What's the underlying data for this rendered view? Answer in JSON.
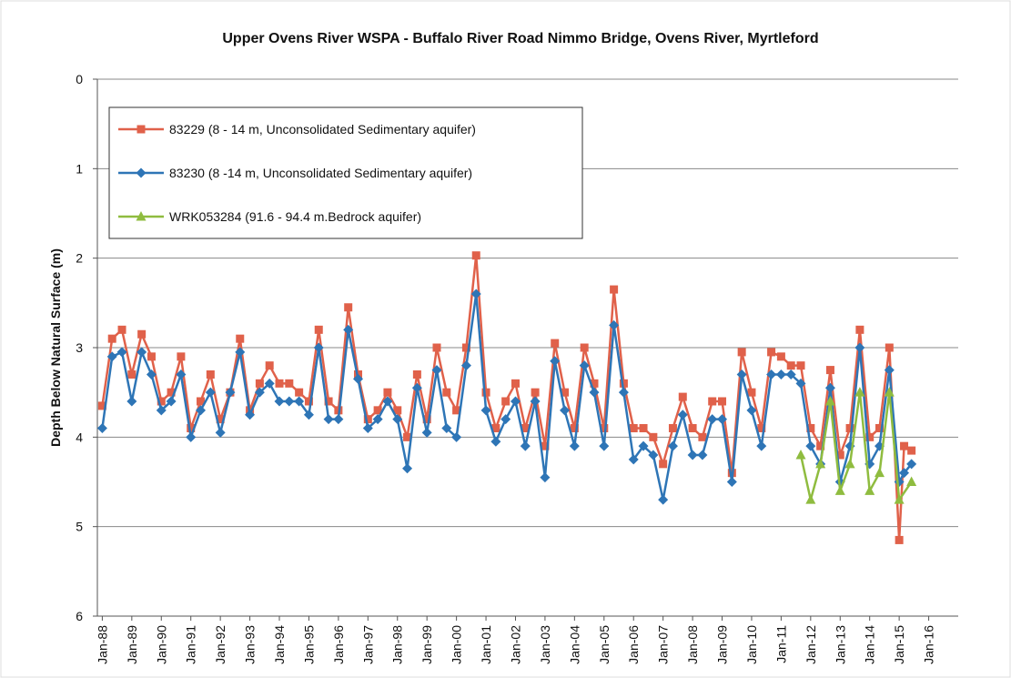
{
  "chart_data": {
    "type": "line",
    "title": "Upper Ovens River WSPA - Buffalo River Road  Nimmo Bridge, Ovens River, Myrtleford",
    "y_label": "Depth Below Natural Surface (m)",
    "ylim": [
      0,
      6
    ],
    "yticks": [
      0,
      1,
      2,
      3,
      4,
      5,
      6
    ],
    "y_inverted": true,
    "grid": true,
    "legend": "top-left",
    "xlim": [
      "1987-11",
      "2017-01"
    ],
    "xticks": [
      {
        "value": "1988-01",
        "label": "Jan-88"
      },
      {
        "value": "1989-01",
        "label": "Jan-89"
      },
      {
        "value": "1990-01",
        "label": "Jan-90"
      },
      {
        "value": "1991-01",
        "label": "Jan-91"
      },
      {
        "value": "1992-01",
        "label": "Jan-92"
      },
      {
        "value": "1993-01",
        "label": "Jan-93"
      },
      {
        "value": "1994-01",
        "label": "Jan-94"
      },
      {
        "value": "1995-01",
        "label": "Jan-95"
      },
      {
        "value": "1996-01",
        "label": "Jan-96"
      },
      {
        "value": "1997-01",
        "label": "Jan-97"
      },
      {
        "value": "1998-01",
        "label": "Jan-98"
      },
      {
        "value": "1999-01",
        "label": "Jan-99"
      },
      {
        "value": "2000-01",
        "label": "Jan-00"
      },
      {
        "value": "2001-01",
        "label": "Jan-01"
      },
      {
        "value": "2002-01",
        "label": "Jan-02"
      },
      {
        "value": "2003-01",
        "label": "Jan-03"
      },
      {
        "value": "2004-01",
        "label": "Jan-04"
      },
      {
        "value": "2005-01",
        "label": "Jan-05"
      },
      {
        "value": "2006-01",
        "label": "Jan-06"
      },
      {
        "value": "2007-01",
        "label": "Jan-07"
      },
      {
        "value": "2008-01",
        "label": "Jan-08"
      },
      {
        "value": "2009-01",
        "label": "Jan-09"
      },
      {
        "value": "2010-01",
        "label": "Jan-10"
      },
      {
        "value": "2011-01",
        "label": "Jan-11"
      },
      {
        "value": "2012-01",
        "label": "Jan-12"
      },
      {
        "value": "2013-01",
        "label": "Jan-13"
      },
      {
        "value": "2014-01",
        "label": "Jan-14"
      },
      {
        "value": "2015-01",
        "label": "Jan-15"
      },
      {
        "value": "2016-01",
        "label": "Jan-16"
      }
    ],
    "series": [
      {
        "name": "83229 (8 - 14 m, Unconsolidated Sedimentary aquifer)",
        "color": "#e0614a",
        "marker": "square",
        "x": [
          "1988-01",
          "1988-05",
          "1988-09",
          "1989-01",
          "1989-05",
          "1989-09",
          "1990-01",
          "1990-05",
          "1990-09",
          "1991-01",
          "1991-05",
          "1991-09",
          "1992-01",
          "1992-05",
          "1992-09",
          "1993-01",
          "1993-05",
          "1993-09",
          "1994-01",
          "1994-05",
          "1994-09",
          "1995-01",
          "1995-05",
          "1995-09",
          "1996-01",
          "1996-05",
          "1996-09",
          "1997-01",
          "1997-05",
          "1997-09",
          "1998-01",
          "1998-05",
          "1998-09",
          "1999-01",
          "1999-05",
          "1999-09",
          "2000-01",
          "2000-05",
          "2000-09",
          "2001-01",
          "2001-05",
          "2001-09",
          "2002-01",
          "2002-05",
          "2002-09",
          "2003-01",
          "2003-05",
          "2003-09",
          "2004-01",
          "2004-05",
          "2004-09",
          "2005-01",
          "2005-05",
          "2005-09",
          "2006-01",
          "2006-05",
          "2006-09",
          "2007-01",
          "2007-05",
          "2007-09",
          "2008-01",
          "2008-05",
          "2008-09",
          "2009-01",
          "2009-05",
          "2009-09",
          "2010-01",
          "2010-05",
          "2010-09",
          "2011-01",
          "2011-05",
          "2011-09",
          "2012-01",
          "2012-05",
          "2012-09",
          "2013-01",
          "2013-05",
          "2013-09",
          "2014-01",
          "2014-05",
          "2014-09",
          "2015-01",
          "2015-03",
          "2015-06"
        ],
        "values": [
          3.65,
          2.9,
          2.8,
          3.3,
          2.85,
          3.1,
          3.6,
          3.5,
          3.1,
          3.9,
          3.6,
          3.3,
          3.8,
          3.5,
          2.9,
          3.7,
          3.4,
          3.2,
          3.4,
          3.4,
          3.5,
          3.6,
          2.8,
          3.6,
          3.7,
          2.55,
          3.3,
          3.8,
          3.7,
          3.5,
          3.7,
          4.0,
          3.3,
          3.8,
          3.0,
          3.5,
          3.7,
          3.0,
          1.97,
          3.5,
          3.9,
          3.6,
          3.4,
          3.9,
          3.5,
          4.1,
          2.95,
          3.5,
          3.9,
          3.0,
          3.4,
          3.9,
          2.35,
          3.4,
          3.9,
          3.9,
          4.0,
          4.3,
          3.9,
          3.55,
          3.9,
          4.0,
          3.6,
          3.6,
          4.4,
          3.05,
          3.5,
          3.9,
          3.05,
          3.1,
          3.2,
          3.2,
          3.9,
          4.1,
          3.25,
          4.2,
          3.9,
          2.8,
          4.0,
          3.9,
          3.0,
          5.15,
          4.1,
          4.15
        ]
      },
      {
        "name": "83230 (8 -14 m,  Unconsolidated Sedimentary aquifer)",
        "color": "#2e75b6",
        "marker": "diamond",
        "x": [
          "1988-01",
          "1988-05",
          "1988-09",
          "1989-01",
          "1989-05",
          "1989-09",
          "1990-01",
          "1990-05",
          "1990-09",
          "1991-01",
          "1991-05",
          "1991-09",
          "1992-01",
          "1992-05",
          "1992-09",
          "1993-01",
          "1993-05",
          "1993-09",
          "1994-01",
          "1994-05",
          "1994-09",
          "1995-01",
          "1995-05",
          "1995-09",
          "1996-01",
          "1996-05",
          "1996-09",
          "1997-01",
          "1997-05",
          "1997-09",
          "1998-01",
          "1998-05",
          "1998-09",
          "1999-01",
          "1999-05",
          "1999-09",
          "2000-01",
          "2000-05",
          "2000-09",
          "2001-01",
          "2001-05",
          "2001-09",
          "2002-01",
          "2002-05",
          "2002-09",
          "2003-01",
          "2003-05",
          "2003-09",
          "2004-01",
          "2004-05",
          "2004-09",
          "2005-01",
          "2005-05",
          "2005-09",
          "2006-01",
          "2006-05",
          "2006-09",
          "2007-01",
          "2007-05",
          "2007-09",
          "2008-01",
          "2008-05",
          "2008-09",
          "2009-01",
          "2009-05",
          "2009-09",
          "2010-01",
          "2010-05",
          "2010-09",
          "2011-01",
          "2011-05",
          "2011-09",
          "2012-01",
          "2012-05",
          "2012-09",
          "2013-01",
          "2013-05",
          "2013-09",
          "2014-01",
          "2014-05",
          "2014-09",
          "2015-01",
          "2015-03",
          "2015-06"
        ],
        "values": [
          3.9,
          3.1,
          3.05,
          3.6,
          3.05,
          3.3,
          3.7,
          3.6,
          3.3,
          4.0,
          3.7,
          3.5,
          3.95,
          3.5,
          3.05,
          3.75,
          3.5,
          3.4,
          3.6,
          3.6,
          3.6,
          3.75,
          3.0,
          3.8,
          3.8,
          2.8,
          3.35,
          3.9,
          3.8,
          3.6,
          3.8,
          4.35,
          3.45,
          3.95,
          3.25,
          3.9,
          4.0,
          3.2,
          2.4,
          3.7,
          4.05,
          3.8,
          3.6,
          4.1,
          3.6,
          4.45,
          3.15,
          3.7,
          4.1,
          3.2,
          3.5,
          4.1,
          2.75,
          3.5,
          4.25,
          4.1,
          4.2,
          4.7,
          4.1,
          3.75,
          4.2,
          4.2,
          3.8,
          3.8,
          4.5,
          3.3,
          3.7,
          4.1,
          3.3,
          3.3,
          3.3,
          3.4,
          4.1,
          4.3,
          3.45,
          4.5,
          4.1,
          3.0,
          4.3,
          4.1,
          3.25,
          4.5,
          4.4,
          4.3
        ]
      },
      {
        "name": "WRK053284 (91.6 - 94.4 m.Bedrock aquifer)",
        "color": "#8fbc3f",
        "marker": "triangle",
        "x": [
          "2011-09",
          "2012-01",
          "2012-05",
          "2012-09",
          "2013-01",
          "2013-05",
          "2013-09",
          "2014-01",
          "2014-05",
          "2014-09",
          "2015-01",
          "2015-06"
        ],
        "values": [
          4.2,
          4.7,
          4.3,
          3.6,
          4.6,
          4.3,
          3.5,
          4.6,
          4.4,
          3.5,
          4.7,
          4.5
        ]
      }
    ]
  }
}
